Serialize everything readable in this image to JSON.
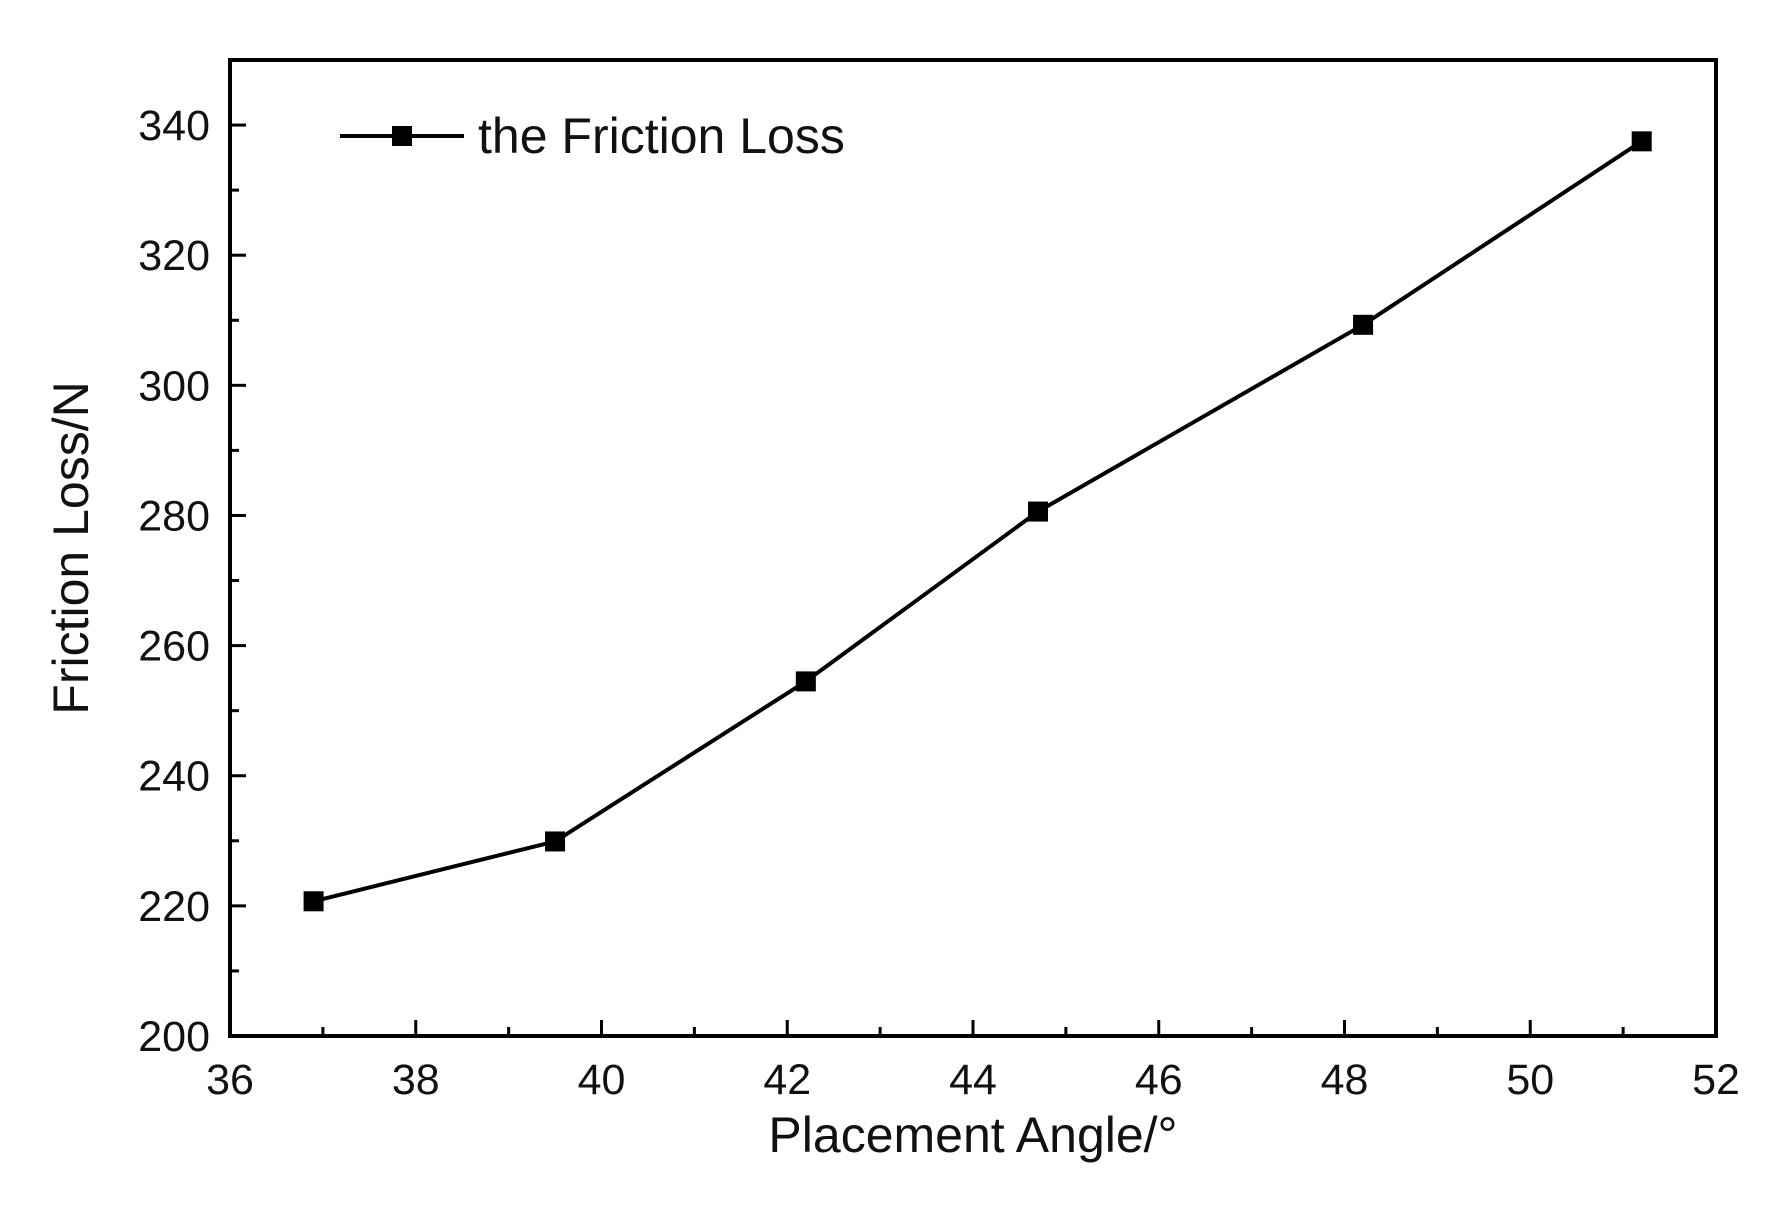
{
  "chart_data": {
    "type": "line",
    "title": "",
    "xlabel": "Placement Angle/°",
    "ylabel": "Friction Loss/N",
    "xlim": [
      36,
      52
    ],
    "ylim": [
      200,
      350
    ],
    "x_ticks": [
      36,
      38,
      40,
      42,
      44,
      46,
      48,
      50,
      52
    ],
    "y_ticks": [
      200,
      220,
      240,
      260,
      280,
      300,
      320,
      340
    ],
    "x_minor_step": 1,
    "y_minor_step": 10,
    "grid": false,
    "legend_position": "top-left",
    "series": [
      {
        "name": "the Friction Loss",
        "marker": "square",
        "color": "#000000",
        "x": [
          36.9,
          39.5,
          42.2,
          44.7,
          48.2,
          51.2
        ],
        "y": [
          220.7,
          229.9,
          254.5,
          280.6,
          309.3,
          337.5
        ]
      }
    ]
  }
}
